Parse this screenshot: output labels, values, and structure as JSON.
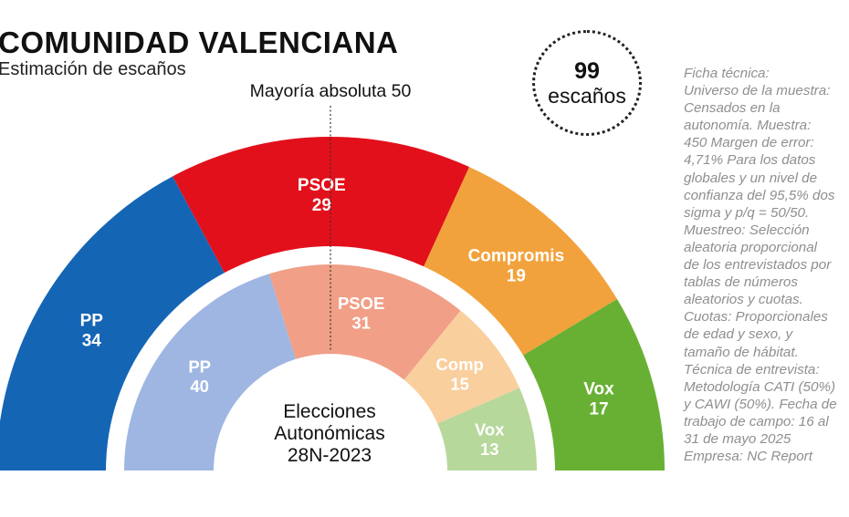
{
  "title": "COMUNIDAD VALENCIANA",
  "subtitle": "Estimación de escaños",
  "total_seats": {
    "number": "99",
    "label": "escaños"
  },
  "majority_label": "Mayoría absoluta 50",
  "inner_ring_label": [
    "Elecciones",
    "Autonómicas",
    "28N-2023"
  ],
  "ficha_tecnica": "Ficha técnica:\nUniverso de la muestra:\nCensados en la\nautonomía. Muestra:\n450 Margen de error:\n4,71% Para los datos\nglobales y un nivel de\nconfianza del 95,5% dos\nsigma y p/q = 50/50.\nMuestreo: Selección\naleatoria proporcional\nde los entrevistados por\ntablas de números\naleatorios y cuotas.\nCuotas: Proporcionales\nde edad y sexo, y\ntamaño de hábitat.\nTécnica de entrevista:\nMetodología CATI (50%)\ny CAWI (50%). Fecha de\ntrabajo de campo: 16 al\n31 de mayo 2025\nEmpresa: NC Report",
  "chart_data": [
    {
      "type": "pie",
      "variant": "semicircle",
      "ring": "outer",
      "total": 99,
      "majority": 50,
      "categories": [
        "PP",
        "PSOE",
        "Compromis",
        "Vox"
      ],
      "values": [
        34,
        29,
        19,
        17
      ],
      "colors": [
        "#1565b5",
        "#e2101b",
        "#f2a23c",
        "#68b033"
      ]
    },
    {
      "type": "pie",
      "variant": "semicircle",
      "ring": "inner",
      "total": 99,
      "categories": [
        "PP",
        "PSOE",
        "Comp",
        "Vox"
      ],
      "values": [
        40,
        31,
        15,
        13
      ],
      "colors": [
        "#9fb6e2",
        "#f19f87",
        "#f9cf9e",
        "#b6d89b"
      ]
    }
  ]
}
